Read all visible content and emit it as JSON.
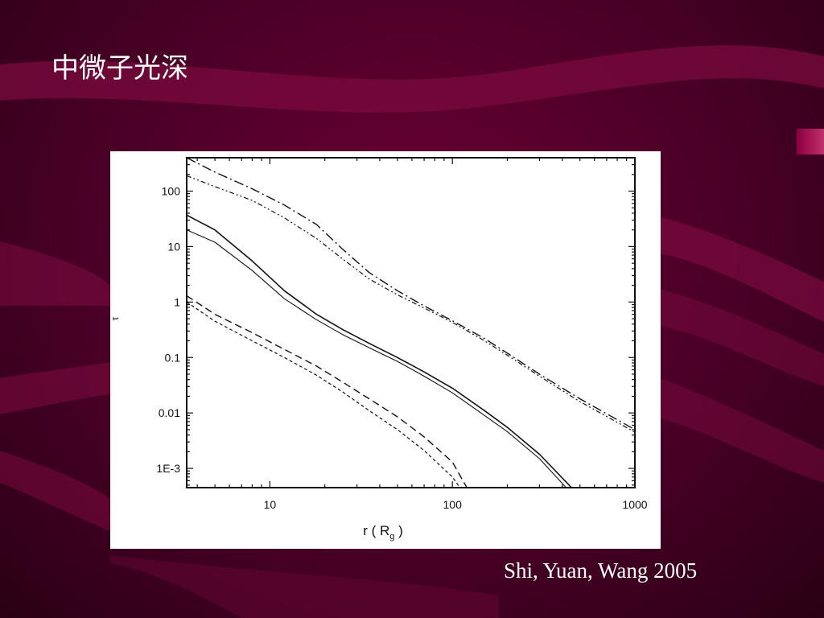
{
  "slide": {
    "title": "中微子光深",
    "citation": "Shi, Yuan, Wang 2005"
  },
  "colors": {
    "background": "#4a0026",
    "swoosh": "#7a0a3e",
    "accent_tab": "#b0205c",
    "text": "#ffffff",
    "ink": "#111111"
  },
  "chart_data": {
    "type": "line",
    "title": "",
    "xlabel": "r ( R",
    "xlabel_sub": "g",
    "xlabel_close": " )",
    "ylabel": "τ",
    "xscale": "log",
    "yscale": "log",
    "xlim": [
      3.5,
      1000
    ],
    "ylim": [
      0.00045,
      400
    ],
    "grid": false,
    "legend": "none",
    "xticks": [
      {
        "value": 10,
        "label": "10"
      },
      {
        "value": 100,
        "label": "100"
      },
      {
        "value": 1000,
        "label": "1000"
      }
    ],
    "yticks": [
      {
        "value": 100,
        "label": "100"
      },
      {
        "value": 10,
        "label": "10"
      },
      {
        "value": 1,
        "label": "1"
      },
      {
        "value": 0.1,
        "label": "0.1"
      },
      {
        "value": 0.01,
        "label": "0.01"
      },
      {
        "value": 0.001,
        "label": "1E-3"
      }
    ],
    "series": [
      {
        "style": "dashdot",
        "x": [
          3.5,
          5,
          8,
          12,
          18,
          25,
          35,
          50,
          70,
          100,
          150,
          200,
          300,
          500,
          1000
        ],
        "y": [
          400,
          220,
          110,
          56,
          25,
          9,
          3.4,
          1.6,
          0.85,
          0.46,
          0.22,
          0.12,
          0.05,
          0.018,
          0.005
        ]
      },
      {
        "style": "dashdotdot",
        "x": [
          3.5,
          5,
          8,
          12,
          18,
          25,
          35,
          50,
          70,
          100,
          150,
          200,
          300,
          500,
          1000
        ],
        "y": [
          190,
          120,
          68,
          33,
          14,
          6,
          2.6,
          1.35,
          0.78,
          0.43,
          0.2,
          0.11,
          0.046,
          0.016,
          0.0045
        ]
      },
      {
        "style": "solid",
        "x": [
          3.5,
          5,
          8,
          12,
          18,
          25,
          35,
          50,
          70,
          100,
          150,
          200,
          300,
          450
        ],
        "y": [
          37,
          20,
          5.5,
          1.6,
          0.6,
          0.32,
          0.18,
          0.1,
          0.055,
          0.028,
          0.011,
          0.0055,
          0.0018,
          0.00045
        ]
      },
      {
        "style": "thin-solid",
        "x": [
          3.5,
          5,
          8,
          12,
          18,
          25,
          35,
          50,
          70,
          100,
          150,
          200,
          300,
          420
        ],
        "y": [
          20,
          12,
          3.7,
          1.15,
          0.48,
          0.26,
          0.15,
          0.085,
          0.046,
          0.023,
          0.009,
          0.0046,
          0.0015,
          0.00045
        ]
      },
      {
        "style": "dashed",
        "x": [
          3.5,
          5,
          8,
          12,
          18,
          25,
          35,
          50,
          70,
          100,
          120
        ],
        "y": [
          1.3,
          0.6,
          0.28,
          0.14,
          0.07,
          0.036,
          0.018,
          0.0085,
          0.0037,
          0.0013,
          0.00045
        ]
      },
      {
        "style": "dotted",
        "x": [
          3.5,
          5,
          8,
          12,
          18,
          25,
          35,
          50,
          70,
          100,
          110
        ],
        "y": [
          1.0,
          0.45,
          0.2,
          0.1,
          0.048,
          0.024,
          0.011,
          0.005,
          0.0021,
          0.0007,
          0.00045
        ]
      }
    ]
  }
}
